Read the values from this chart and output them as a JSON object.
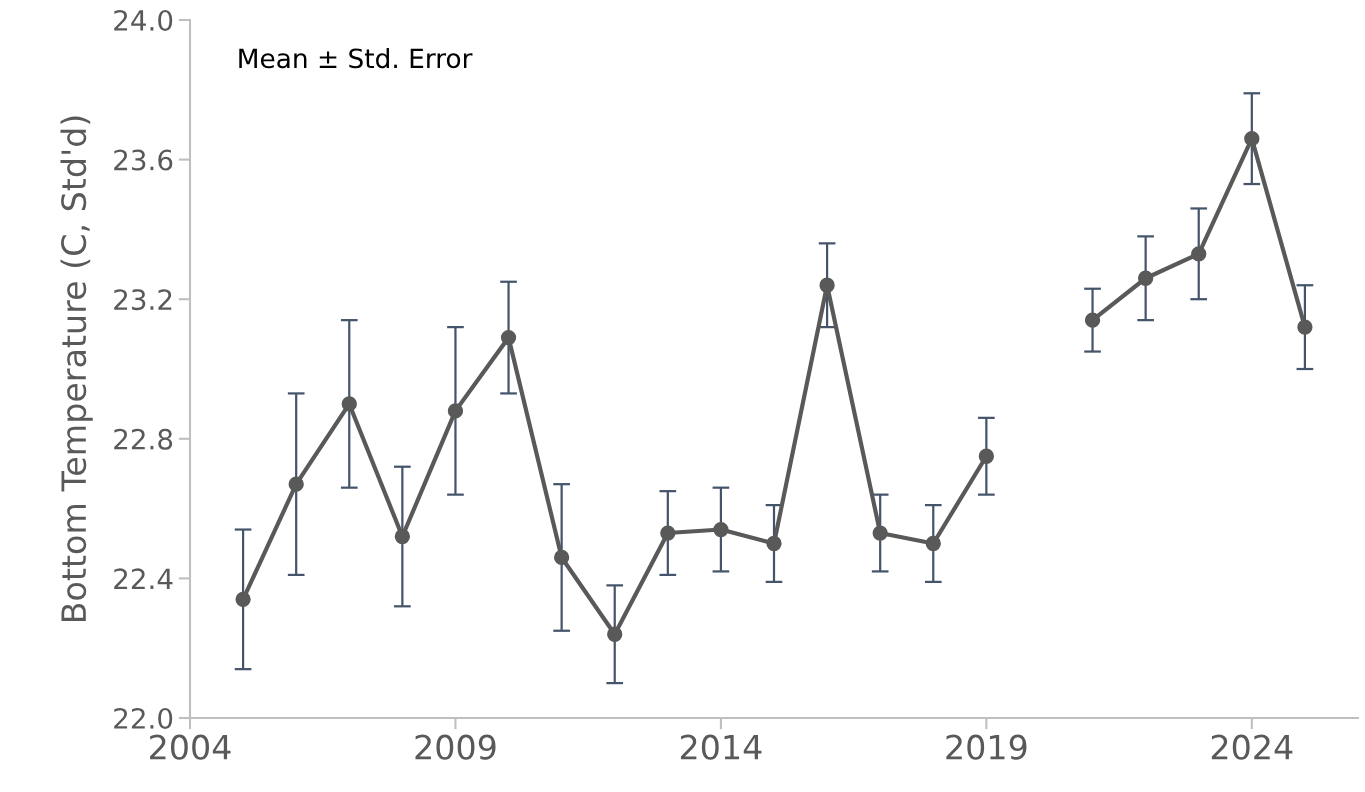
{
  "chart_data": {
    "type": "line",
    "ylabel": "Bottom Temperature (C, Std'd)",
    "annotations": [
      "Mean ± Std. Error"
    ],
    "x": [
      2005,
      2006,
      2007,
      2008,
      2009,
      2010,
      2011,
      2012,
      2013,
      2014,
      2015,
      2016,
      2017,
      2018,
      2019,
      2020,
      2021,
      2022,
      2023,
      2024,
      2025
    ],
    "series": [
      {
        "color": "#595959",
        "values": [
          22.34,
          22.67,
          22.9,
          22.52,
          22.88,
          23.09,
          22.46,
          22.24,
          22.53,
          22.54,
          22.5,
          23.24,
          22.53,
          22.5,
          22.75,
          null,
          23.14,
          23.26,
          23.33,
          23.66,
          23.12
        ],
        "errors": [
          0.2,
          0.26,
          0.24,
          0.2,
          0.24,
          0.16,
          0.21,
          0.14,
          0.12,
          0.12,
          0.11,
          0.12,
          0.11,
          0.11,
          0.11,
          null,
          0.09,
          0.12,
          0.13,
          0.13,
          0.12
        ]
      }
    ],
    "xlim": [
      2004,
      2026
    ],
    "xticks": [
      2004,
      2009,
      2014,
      2019,
      2024
    ],
    "ylim": [
      22.0,
      24.0
    ],
    "yticks": [
      {
        "value": 22.0,
        "label": "22.0"
      },
      {
        "value": 22.4,
        "label": "22.4"
      },
      {
        "value": 22.8,
        "label": "22.8"
      },
      {
        "value": 23.2,
        "label": "23.2"
      },
      {
        "value": 23.6,
        "label": "23.6"
      },
      {
        "value": 24.0,
        "label": "24.0"
      }
    ],
    "marker": "circle",
    "line_style": "solid",
    "grid": false,
    "legend": false
  }
}
